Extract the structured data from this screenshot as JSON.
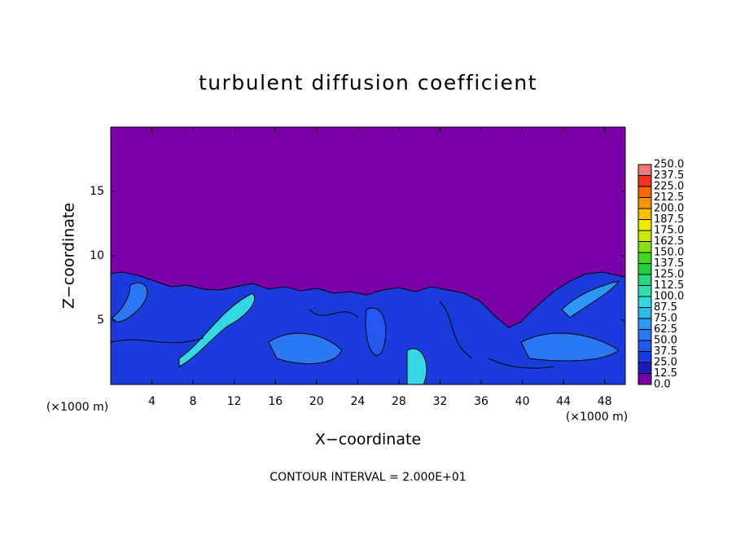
{
  "chart_data": {
    "type": "contour",
    "title": "turbulent diffusion coefficient",
    "x_label": "X−coordinate",
    "y_label": "Z−coordinate",
    "x_unit_label": "(×1000 m)",
    "y_unit_label": "(×1000 m)",
    "note": "CONTOUR INTERVAL = 2.000E+01",
    "xlim": [
      0,
      50
    ],
    "xticks": [
      4,
      8,
      12,
      16,
      20,
      24,
      28,
      32,
      36,
      40,
      44,
      48
    ],
    "ylim": [
      0,
      20
    ],
    "yticks": [
      5,
      10,
      15
    ],
    "colorbar": {
      "ticks": [
        {
          "value": 0,
          "label": "0.0"
        },
        {
          "value": 12.5,
          "label": "12.5"
        },
        {
          "value": 25,
          "label": "25.0"
        },
        {
          "value": 37.5,
          "label": "37.5"
        },
        {
          "value": 50,
          "label": "50.0"
        },
        {
          "value": 62.5,
          "label": "62.5"
        },
        {
          "value": 75,
          "label": "75.0"
        },
        {
          "value": 87.5,
          "label": "87.5"
        },
        {
          "value": 100,
          "label": "100.0"
        },
        {
          "value": 112.5,
          "label": "112.5"
        },
        {
          "value": 125,
          "label": "125.0"
        },
        {
          "value": 137.5,
          "label": "137.5"
        },
        {
          "value": 150,
          "label": "150.0"
        },
        {
          "value": 162.5,
          "label": "162.5"
        },
        {
          "value": 175,
          "label": "175.0"
        },
        {
          "value": 187.5,
          "label": "187.5"
        },
        {
          "value": 200,
          "label": "200.0"
        },
        {
          "value": 212.5,
          "label": "212.5"
        },
        {
          "value": 225,
          "label": "225.0"
        },
        {
          "value": 237.5,
          "label": "237.5"
        },
        {
          "value": 250,
          "label": "250.0"
        }
      ],
      "colors": [
        "#7a00a8",
        "#1c1cb8",
        "#1a3cdc",
        "#2458f0",
        "#2a78f4",
        "#2c98f4",
        "#30b8ec",
        "#34d8e4",
        "#30e0b0",
        "#28d880",
        "#20d040",
        "#40d818",
        "#88e010",
        "#c8e808",
        "#f0e800",
        "#f8c000",
        "#f89800",
        "#f86800",
        "#f03020",
        "#f07878"
      ]
    }
  }
}
